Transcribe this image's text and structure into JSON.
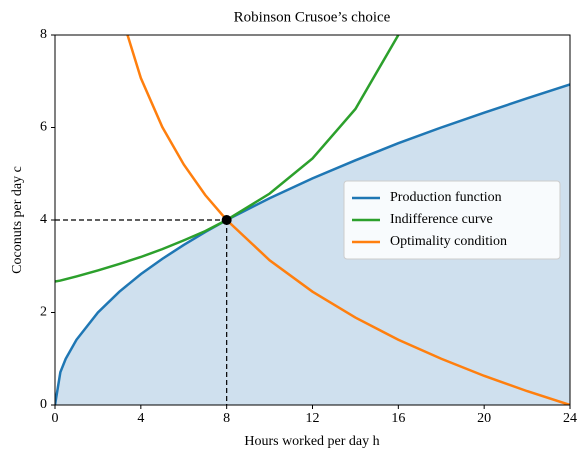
{
  "chart_data": {
    "type": "line",
    "title": "Robinson Crusoe’s choice",
    "xlabel": "Hours worked per day h",
    "ylabel": "Coconuts per day c",
    "x": [
      0,
      0.25,
      0.5,
      1,
      2,
      3,
      4,
      5,
      6,
      7,
      8,
      10,
      12,
      14,
      16,
      18,
      20,
      22,
      24
    ],
    "series": [
      {
        "name": "Production function",
        "color": "#1f77b4",
        "fill_color": "#cfe0ee",
        "values": [
          0,
          0.71,
          1,
          1.41,
          2,
          2.45,
          2.83,
          3.16,
          3.46,
          3.74,
          4,
          4.47,
          4.9,
          5.29,
          5.66,
          6,
          6.32,
          6.63,
          6.93
        ]
      },
      {
        "name": "Indifference curve",
        "color": "#2ca02c",
        "values": [
          2.67,
          2.69,
          2.72,
          2.78,
          2.91,
          3.05,
          3.2,
          3.37,
          3.56,
          3.76,
          4,
          4.57,
          5.33,
          6.4,
          8,
          null,
          null,
          null,
          null
        ]
      },
      {
        "name": "Optimality condition",
        "color": "#ff7f0e",
        "values": [
          null,
          null,
          null,
          null,
          null,
          8.57,
          7.07,
          6.01,
          5.2,
          4.54,
          4,
          3.13,
          2.45,
          1.89,
          1.41,
          1,
          0.63,
          0.3,
          0
        ]
      }
    ],
    "optimum": {
      "x": 8,
      "y": 4,
      "color": "#000000"
    },
    "xlim": [
      0,
      24
    ],
    "xticks": [
      0,
      4,
      8,
      12,
      16,
      20,
      24
    ],
    "ylim": [
      0,
      8
    ],
    "yticks": [
      0,
      2,
      4,
      6,
      8
    ],
    "legend": "center right"
  }
}
